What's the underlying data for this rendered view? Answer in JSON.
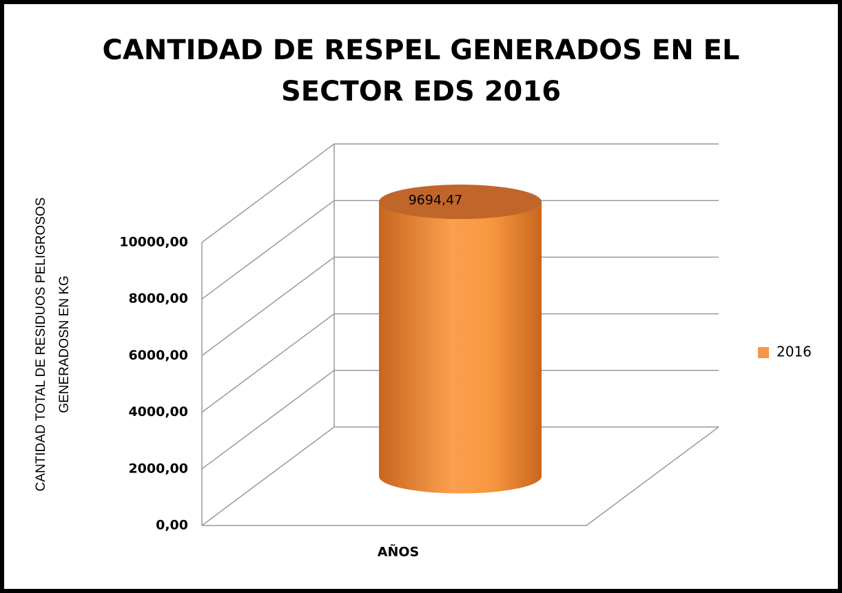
{
  "chart_data": {
    "type": "bar3d",
    "title_lines": [
      "CANTIDAD DE RESPEL GENERADOS EN EL",
      "SECTOR EDS 2016"
    ],
    "y_axis_label_lines": [
      "CANTIDAD TOTAL DE RESIDUOS PELIGROSOS",
      "GENERADOSN EN KG"
    ],
    "x_axis_label": "AÑOS",
    "categories": [
      null
    ],
    "series": [
      {
        "name": "2016",
        "color": "#f79646",
        "values": [
          9694.47
        ],
        "value_labels": [
          "9694,47"
        ]
      }
    ],
    "ylim": [
      0,
      10000
    ],
    "yticks": [
      {
        "value": 0,
        "label": "0,00"
      },
      {
        "value": 2000,
        "label": "2000,00"
      },
      {
        "value": 4000,
        "label": "4000,00"
      },
      {
        "value": 6000,
        "label": "6000,00"
      },
      {
        "value": 8000,
        "label": "8000,00"
      },
      {
        "value": 10000,
        "label": "10000,00"
      }
    ],
    "grid": true,
    "legend": "right"
  }
}
